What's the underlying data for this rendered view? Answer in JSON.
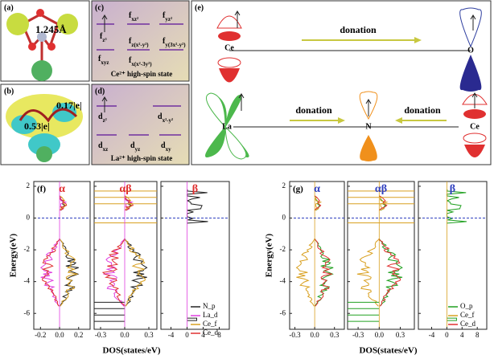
{
  "panel_a": {
    "label": "(a)",
    "bond_length": "1.245Å"
  },
  "panel_b": {
    "label": "(b)",
    "charges": [
      "0.53|e|",
      "0.17|e|"
    ]
  },
  "panel_c": {
    "label": "(c)",
    "orbitals": [
      {
        "base": "f",
        "sub": "z³"
      },
      {
        "base": "f",
        "sub": "xz²"
      },
      {
        "base": "f",
        "sub": "yz²"
      },
      {
        "base": "f",
        "sub": "z(x²-y²)"
      },
      {
        "base": "f",
        "sub": "y(3x²-y²)"
      },
      {
        "base": "f",
        "sub": "xyz"
      },
      {
        "base": "f",
        "sub": "x(x²-3y²)"
      }
    ],
    "state": "Ce²⁺ high-spin state"
  },
  "panel_d": {
    "label": "(d)",
    "orbitals": [
      {
        "base": "d",
        "sub": "z²"
      },
      {
        "base": "d",
        "sub": "x²-y²"
      },
      {
        "base": "d",
        "sub": "xz"
      },
      {
        "base": "d",
        "sub": "yz"
      },
      {
        "base": "d",
        "sub": "xy"
      }
    ],
    "state": "La²⁺ high-spin state"
  },
  "panel_e": {
    "label": "(e)",
    "top": {
      "left": "Ce",
      "right": "O",
      "arrow": "donation"
    },
    "bottom": {
      "left": "La",
      "center": "N",
      "right": "Ce",
      "arrows": [
        "donation",
        "donation"
      ]
    }
  },
  "dos_panels": [
    {
      "label": "(f)",
      "y_label": "Energy(eV)",
      "x_label": "DOS(states/eV)",
      "ylim": [
        -7,
        2.3
      ],
      "yticks": [
        2,
        0,
        -2,
        -4,
        -6
      ],
      "subplots": [
        {
          "title": "α",
          "title_color": "#e03030",
          "xlim": [
            -0.27,
            0.32
          ],
          "xticks": [
            -0.2,
            {
              "value": 0,
              "label": "0.0"
            },
            0.2
          ]
        },
        {
          "title": "αβ",
          "title_color": "#e03030",
          "xlim": [
            -0.38,
            0.4
          ],
          "xticks": [
            -0.3,
            {
              "value": 0,
              "label": "0.0"
            },
            0.3
          ]
        },
        {
          "title": "β",
          "title_color": "#e03030",
          "xlim": [
            -6.5,
            10.5
          ],
          "xticks": [
            -4,
            0,
            4,
            8
          ]
        }
      ],
      "legend": [
        {
          "name": "N_p",
          "color": "#222222"
        },
        {
          "name": "La_d",
          "color": "#e040e0"
        },
        {
          "name": "Ce_f",
          "color": "#d9a020"
        },
        {
          "name": "Ce_d",
          "color": "#e03030"
        }
      ]
    },
    {
      "label": "(g)",
      "y_label": "Energy(eV)",
      "x_label": "DOS(states/eV)",
      "ylim": [
        -7,
        2.3
      ],
      "yticks": [
        2,
        0,
        -2,
        -4,
        -6
      ],
      "subplots": [
        {
          "title": "α",
          "title_color": "#3040c0",
          "xlim": [
            -0.38,
            0.45
          ],
          "xticks": [
            -0.3,
            {
              "value": 0,
              "label": "0.0"
            },
            0.3
          ]
        },
        {
          "title": "αβ",
          "title_color": "#3040c0",
          "xlim": [
            -0.45,
            0.5
          ],
          "xticks": [
            -0.3,
            {
              "value": 0,
              "label": "0.0"
            },
            0.3
          ]
        },
        {
          "title": "β",
          "title_color": "#3040c0",
          "xlim": [
            -7.5,
            10.5
          ],
          "xticks": [
            -4,
            0,
            4,
            8
          ]
        }
      ],
      "legend": [
        {
          "name": "O_p",
          "color": "#20a020"
        },
        {
          "name": "Ce_f",
          "color": "#d9a020"
        },
        {
          "name": "Ce_d",
          "color": "#e03030"
        }
      ]
    }
  ]
}
